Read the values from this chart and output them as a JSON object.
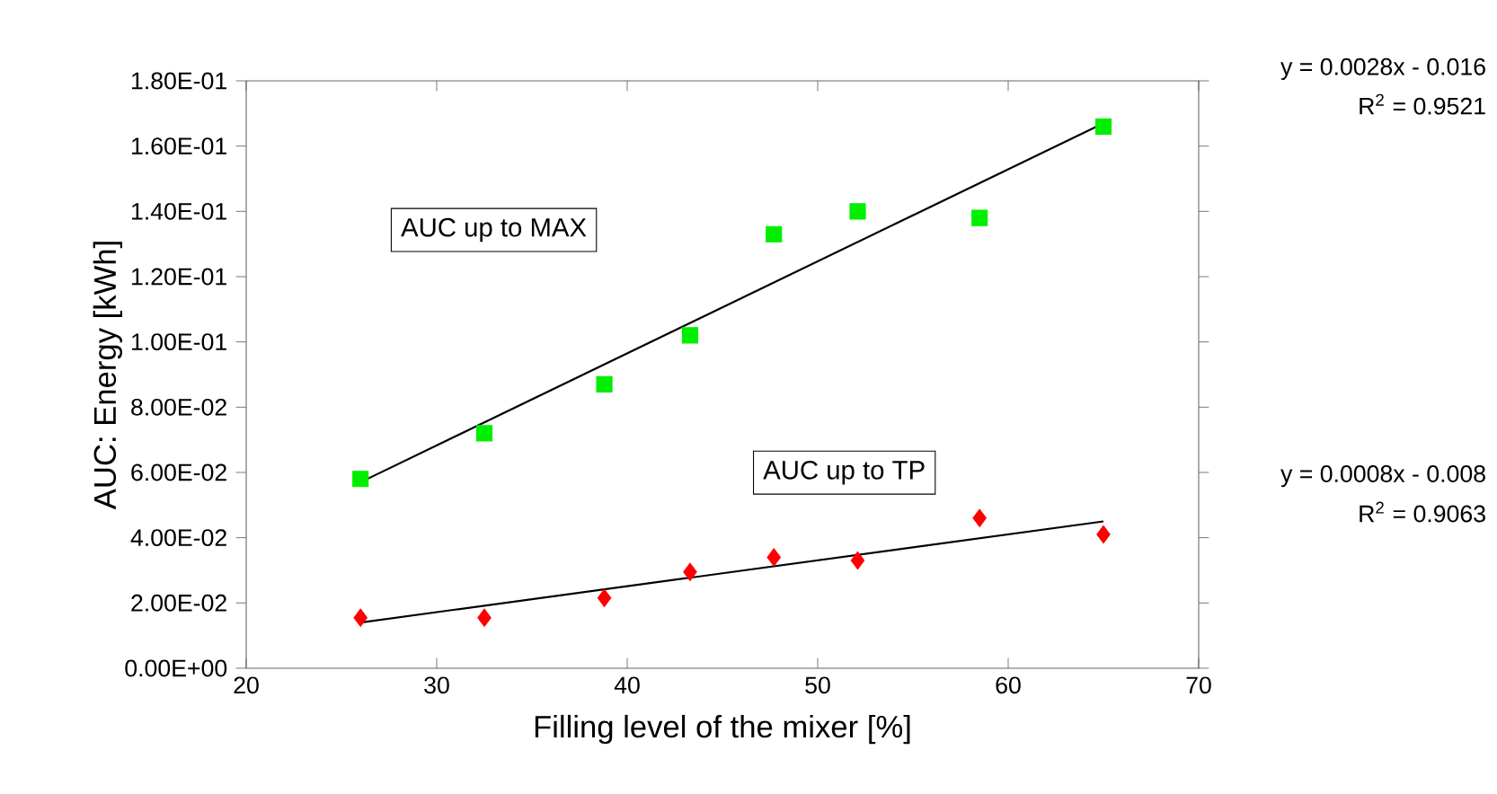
{
  "chart_data": {
    "type": "scatter",
    "xlabel": "Filling level of the mixer [%]",
    "ylabel": "AUC: Energy [kWh]",
    "xlim": [
      20,
      70
    ],
    "xticks": [
      20,
      30,
      40,
      50,
      60,
      70
    ],
    "ylim": [
      0,
      0.18
    ],
    "yticks": [
      {
        "value": 0,
        "label": "0.00E+00"
      },
      {
        "value": 0.02,
        "label": "2.00E-02"
      },
      {
        "value": 0.04,
        "label": "4.00E-02"
      },
      {
        "value": 0.06,
        "label": "6.00E-02"
      },
      {
        "value": 0.08,
        "label": "8.00E-02"
      },
      {
        "value": 0.1,
        "label": "1.00E-01"
      },
      {
        "value": 0.12,
        "label": "1.20E-01"
      },
      {
        "value": 0.14,
        "label": "1.40E-01"
      },
      {
        "value": 0.16,
        "label": "1.60E-01"
      },
      {
        "value": 0.18,
        "label": "1.80E-01"
      }
    ],
    "series": [
      {
        "type": "scatter",
        "marker": "square",
        "color": "#00ee00",
        "x": [
          26,
          32.5,
          38.8,
          43.3,
          47.7,
          52.1,
          58.5,
          65
        ],
        "values": [
          0.058,
          0.072,
          0.087,
          0.102,
          0.133,
          0.14,
          0.138,
          0.166
        ]
      },
      {
        "type": "line",
        "marker": "none",
        "color": "#000000",
        "x": [
          26,
          65
        ],
        "values": [
          0.057,
          0.167
        ]
      },
      {
        "type": "scatter",
        "marker": "diamond",
        "color": "#ff0000",
        "x": [
          26,
          32.5,
          38.8,
          43.3,
          47.7,
          52.1,
          58.5,
          65
        ],
        "values": [
          0.0155,
          0.0155,
          0.0215,
          0.0295,
          0.034,
          0.033,
          0.046,
          0.041
        ]
      },
      {
        "type": "line",
        "marker": "none",
        "color": "#000000",
        "x": [
          26,
          65
        ],
        "values": [
          0.014,
          0.045
        ]
      }
    ],
    "annotations": [
      "AUC up to MAX",
      "AUC up to TP",
      "y = 0.0028x - 0.016",
      "R$^{2}$ = 0.9521",
      "y = 0.0008x - 0.008",
      "R$^{2}$ = 0.9063"
    ]
  }
}
